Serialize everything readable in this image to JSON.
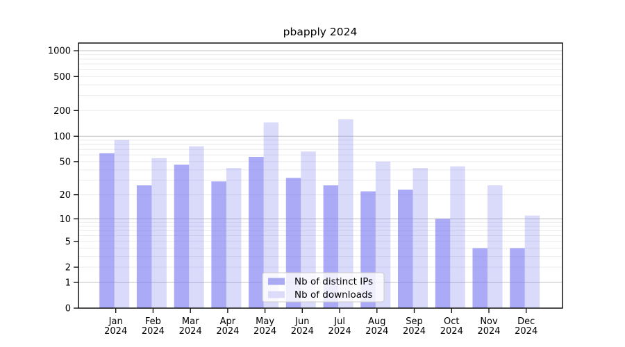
{
  "title": "pbapply 2024",
  "chart_data": {
    "type": "bar",
    "title": "pbapply 2024",
    "scale": "log1p",
    "grid": "horizontal",
    "legend_position": "bottom-center",
    "categories": [
      "Jan",
      "Feb",
      "Mar",
      "Apr",
      "May",
      "Jun",
      "Jul",
      "Aug",
      "Sep",
      "Oct",
      "Nov",
      "Dec"
    ],
    "category_sublabel": "2024",
    "series": [
      {
        "name": "Nb of distinct IPs",
        "values": [
          63,
          26,
          46,
          29,
          57,
          32,
          26,
          22,
          23,
          10,
          4,
          4
        ]
      },
      {
        "name": "Nb of downloads",
        "values": [
          90,
          55,
          76,
          42,
          145,
          66,
          158,
          50,
          42,
          44,
          26,
          11
        ]
      }
    ],
    "y_ticks": [
      0,
      1,
      2,
      5,
      10,
      20,
      50,
      100,
      200,
      500,
      1000
    ],
    "ylim": [
      0,
      1230
    ],
    "xlabel": "",
    "ylabel": ""
  },
  "colors": {
    "bar_base": "121,121,241",
    "bar_alpha_ips": 0.63,
    "bar_alpha_downloads": 0.28,
    "swatch_ips": "#aaaaf3",
    "swatch_downloads": "#dcdcfa",
    "grid_major": "#c6c6c6",
    "grid_minor": "#ebebeb",
    "axis_box": "#000000",
    "legend_border": "#cccccc",
    "legend_bg": "rgba(255,255,255,0.8)"
  },
  "legend": {
    "items": [
      {
        "label": "Nb of distinct IPs"
      },
      {
        "label": "Nb of downloads"
      }
    ]
  }
}
